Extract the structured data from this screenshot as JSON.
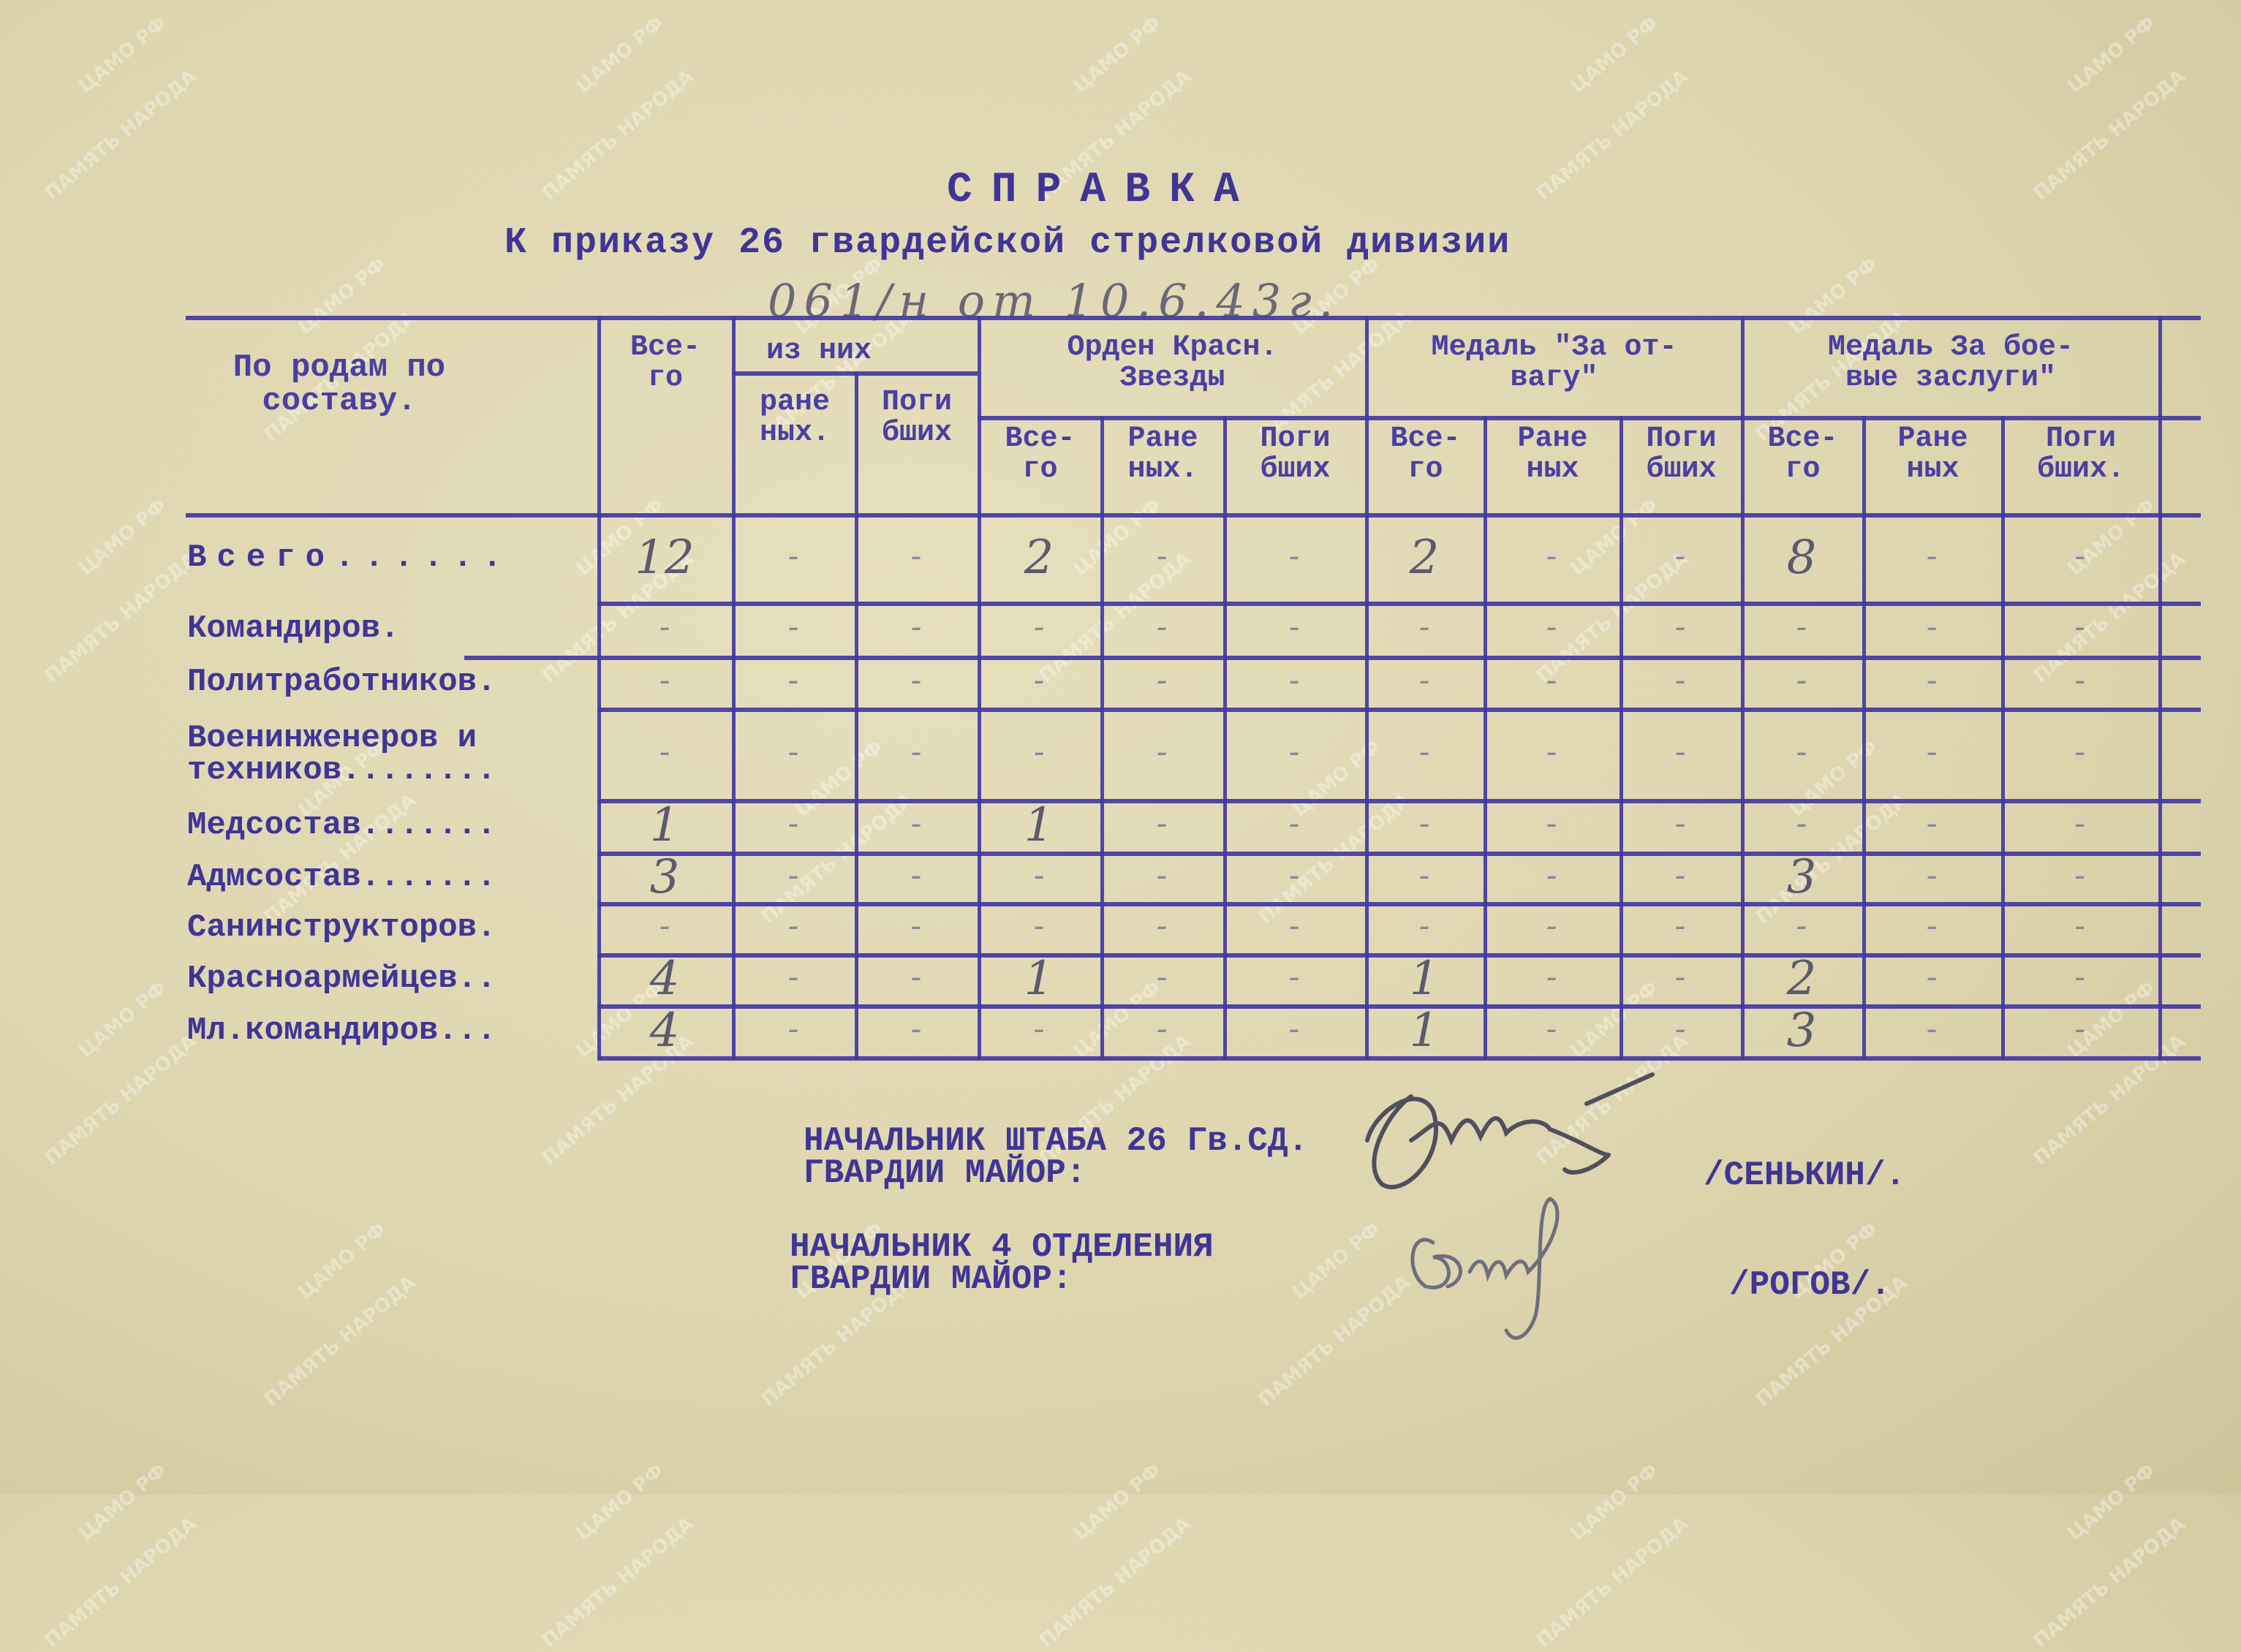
{
  "document": {
    "title": "СПРАВКА",
    "subtitle": "К приказу 26 гвардейской стрелковой дивизии",
    "order_ref_handwritten": "061/н от 10.6.43г."
  },
  "table": {
    "header": {
      "category": "По родам по\nсоставу.",
      "total": "Все-\nго",
      "of_them": "из них",
      "wounded": "ране\nных.",
      "killed": "Поги\nбших",
      "groups": [
        {
          "label": "Орден Красн.\nЗвезды",
          "sub": [
            "Все-\nго",
            "Ране\nных.",
            "Поги\nбших"
          ]
        },
        {
          "label": "Медаль \"За от-\nвагу\"",
          "sub": [
            "Все-\nго",
            "Ране\nных",
            "Поги\nбших"
          ]
        },
        {
          "label": "Медаль За бое-\nвые заслуги\"",
          "sub": [
            "Все-\nго",
            "Ране\nных",
            "Поги\nбших."
          ]
        }
      ]
    },
    "rows": [
      {
        "label": "Всего......",
        "values": [
          "12",
          "-",
          "-",
          "2",
          "-",
          "-",
          "2",
          "-",
          "-",
          "8",
          "-",
          "-"
        ]
      },
      {
        "label": "Командиров.",
        "values": [
          "-",
          "-",
          "-",
          "-",
          "-",
          "-",
          "-",
          "-",
          "-",
          "-",
          "-",
          "-"
        ]
      },
      {
        "label": "Политработников.",
        "values": [
          "-",
          "-",
          "-",
          "-",
          "-",
          "-",
          "-",
          "-",
          "-",
          "-",
          "-",
          "-"
        ]
      },
      {
        "label": "Военинженеров и\nтехников........",
        "values": [
          "-",
          "-",
          "-",
          "-",
          "-",
          "-",
          "-",
          "-",
          "-",
          "-",
          "-",
          "-"
        ]
      },
      {
        "label": "Медсостав.......",
        "values": [
          "1",
          "-",
          "-",
          "1",
          "-",
          "-",
          "-",
          "-",
          "-",
          "-",
          "-",
          "-"
        ]
      },
      {
        "label": "Адмсостав.......",
        "values": [
          "3",
          "-",
          "-",
          "-",
          "-",
          "-",
          "-",
          "-",
          "-",
          "3",
          "-",
          "-"
        ]
      },
      {
        "label": "Санинструкторов.",
        "values": [
          "-",
          "-",
          "-",
          "-",
          "-",
          "-",
          "-",
          "-",
          "-",
          "-",
          "-",
          "-"
        ]
      },
      {
        "label": "Красноармейцев..",
        "values": [
          "4",
          "-",
          "-",
          "1",
          "-",
          "-",
          "1",
          "-",
          "-",
          "2",
          "-",
          "-"
        ]
      },
      {
        "label": "Мл.командиров...",
        "values": [
          "4",
          "-",
          "-",
          "-",
          "-",
          "-",
          "1",
          "-",
          "-",
          "3",
          "-",
          "-"
        ]
      }
    ]
  },
  "signatures": [
    {
      "position": "НАЧАЛЬНИК ШТАБА 26 Гв.СД.\nГВАРДИИ МАЙОР:",
      "name": "/СЕНЬКИН/."
    },
    {
      "position": "НАЧАЛЬНИК 4 ОТДЕЛЕНИЯ\nГВАРДИИ МАЙОР:",
      "name": "/РОГОВ/."
    }
  ],
  "watermarks": [
    "ЦАМО РФ",
    "ПАМЯТЬ НАРОДА"
  ],
  "colors": {
    "paper": "#e3dcb8",
    "typewriter_ink": "#3f3597",
    "pencil": "#58586a"
  }
}
